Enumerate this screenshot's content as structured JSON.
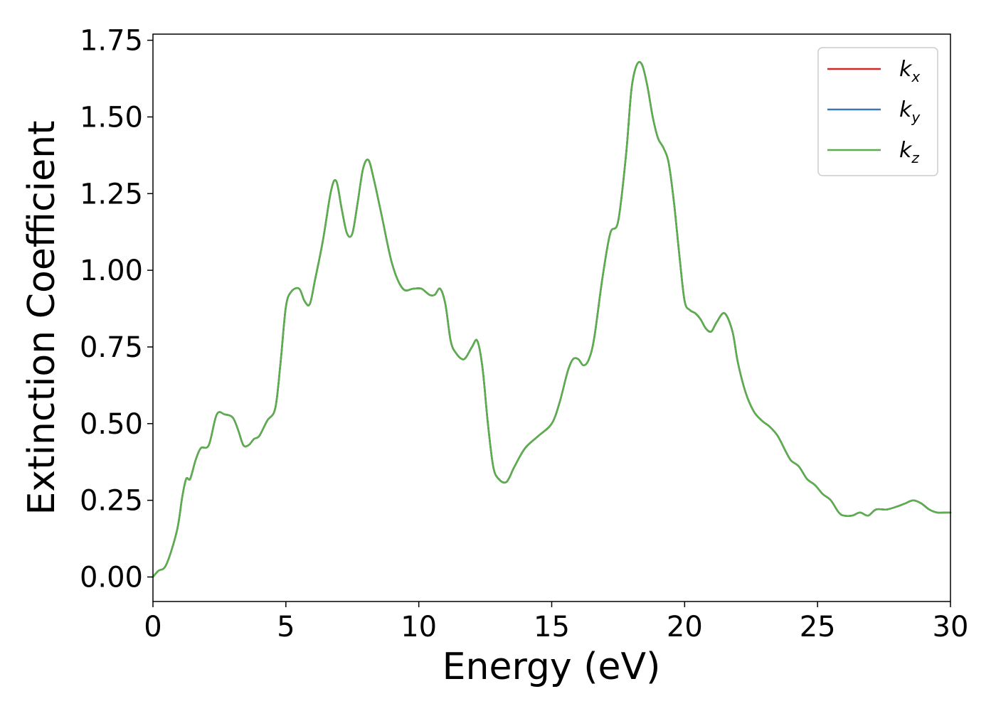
{
  "chart_data": {
    "type": "line",
    "xlabel": "Energy (eV)",
    "ylabel": "Extinction Coefficient",
    "xlim": [
      0,
      30
    ],
    "ylim": [
      -0.08,
      1.77
    ],
    "x_ticks": [
      "0",
      "5",
      "10",
      "15",
      "20",
      "25",
      "30"
    ],
    "y_ticks": [
      "0.00",
      "0.25",
      "0.50",
      "0.75",
      "1.00",
      "1.25",
      "1.50",
      "1.75"
    ],
    "grid": false,
    "legend_position": "top-right",
    "series": [
      {
        "name": "k",
        "sub": "x",
        "color": "#d62728",
        "x": [
          0,
          0.2,
          0.5,
          0.9,
          1.1,
          1.25,
          1.4,
          1.6,
          1.8,
          2.1,
          2.4,
          2.7,
          3.0,
          3.2,
          3.4,
          3.6,
          3.8,
          4.0,
          4.3,
          4.6,
          4.8,
          5.0,
          5.2,
          5.5,
          5.7,
          5.9,
          6.1,
          6.4,
          6.7,
          6.9,
          7.1,
          7.3,
          7.5,
          7.7,
          7.9,
          8.1,
          8.3,
          8.6,
          9.0,
          9.4,
          9.8,
          10.1,
          10.4,
          10.6,
          10.8,
          11.0,
          11.2,
          11.4,
          11.7,
          12.0,
          12.2,
          12.4,
          12.6,
          12.8,
          13.0,
          13.3,
          13.6,
          14.0,
          14.5,
          15.0,
          15.3,
          15.6,
          15.8,
          16.0,
          16.2,
          16.4,
          16.6,
          16.9,
          17.2,
          17.5,
          17.8,
          18.0,
          18.2,
          18.4,
          18.6,
          18.8,
          19.0,
          19.2,
          19.4,
          19.6,
          19.8,
          20.0,
          20.2,
          20.4,
          20.6,
          20.8,
          21.0,
          21.2,
          21.5,
          21.8,
          22.0,
          22.3,
          22.6,
          22.9,
          23.2,
          23.5,
          23.8,
          24.0,
          24.3,
          24.6,
          24.9,
          25.2,
          25.5,
          25.8,
          26.0,
          26.3,
          26.6,
          26.9,
          27.2,
          27.6,
          28.0,
          28.3,
          28.6,
          28.9,
          29.2,
          29.5,
          29.8,
          30.0
        ],
        "values": [
          0.0,
          0.02,
          0.04,
          0.15,
          0.26,
          0.32,
          0.32,
          0.38,
          0.42,
          0.43,
          0.53,
          0.53,
          0.52,
          0.48,
          0.43,
          0.43,
          0.45,
          0.46,
          0.51,
          0.55,
          0.7,
          0.88,
          0.93,
          0.94,
          0.9,
          0.89,
          0.97,
          1.1,
          1.26,
          1.29,
          1.2,
          1.12,
          1.12,
          1.22,
          1.33,
          1.36,
          1.3,
          1.18,
          1.02,
          0.94,
          0.94,
          0.94,
          0.92,
          0.92,
          0.94,
          0.89,
          0.77,
          0.73,
          0.71,
          0.75,
          0.77,
          0.68,
          0.5,
          0.36,
          0.32,
          0.31,
          0.36,
          0.42,
          0.46,
          0.5,
          0.57,
          0.67,
          0.71,
          0.71,
          0.69,
          0.71,
          0.78,
          0.97,
          1.12,
          1.16,
          1.38,
          1.59,
          1.67,
          1.67,
          1.6,
          1.5,
          1.43,
          1.4,
          1.35,
          1.22,
          1.05,
          0.9,
          0.87,
          0.86,
          0.84,
          0.81,
          0.8,
          0.83,
          0.86,
          0.8,
          0.7,
          0.6,
          0.54,
          0.51,
          0.49,
          0.46,
          0.41,
          0.38,
          0.36,
          0.32,
          0.3,
          0.27,
          0.25,
          0.21,
          0.2,
          0.2,
          0.21,
          0.2,
          0.22,
          0.22,
          0.23,
          0.24,
          0.25,
          0.24,
          0.22,
          0.21,
          0.21,
          0.21
        ]
      },
      {
        "name": "k",
        "sub": "y",
        "color": "#3a77b4",
        "x": [
          0,
          0.2,
          0.5,
          0.9,
          1.1,
          1.25,
          1.4,
          1.6,
          1.8,
          2.1,
          2.4,
          2.7,
          3.0,
          3.2,
          3.4,
          3.6,
          3.8,
          4.0,
          4.3,
          4.6,
          4.8,
          5.0,
          5.2,
          5.5,
          5.7,
          5.9,
          6.1,
          6.4,
          6.7,
          6.9,
          7.1,
          7.3,
          7.5,
          7.7,
          7.9,
          8.1,
          8.3,
          8.6,
          9.0,
          9.4,
          9.8,
          10.1,
          10.4,
          10.6,
          10.8,
          11.0,
          11.2,
          11.4,
          11.7,
          12.0,
          12.2,
          12.4,
          12.6,
          12.8,
          13.0,
          13.3,
          13.6,
          14.0,
          14.5,
          15.0,
          15.3,
          15.6,
          15.8,
          16.0,
          16.2,
          16.4,
          16.6,
          16.9,
          17.2,
          17.5,
          17.8,
          18.0,
          18.2,
          18.4,
          18.6,
          18.8,
          19.0,
          19.2,
          19.4,
          19.6,
          19.8,
          20.0,
          20.2,
          20.4,
          20.6,
          20.8,
          21.0,
          21.2,
          21.5,
          21.8,
          22.0,
          22.3,
          22.6,
          22.9,
          23.2,
          23.5,
          23.8,
          24.0,
          24.3,
          24.6,
          24.9,
          25.2,
          25.5,
          25.8,
          26.0,
          26.3,
          26.6,
          26.9,
          27.2,
          27.6,
          28.0,
          28.3,
          28.6,
          28.9,
          29.2,
          29.5,
          29.8,
          30.0
        ],
        "values": [
          0.0,
          0.02,
          0.04,
          0.15,
          0.26,
          0.32,
          0.32,
          0.38,
          0.42,
          0.43,
          0.53,
          0.53,
          0.52,
          0.48,
          0.43,
          0.43,
          0.45,
          0.46,
          0.51,
          0.55,
          0.7,
          0.88,
          0.93,
          0.94,
          0.9,
          0.89,
          0.97,
          1.1,
          1.26,
          1.29,
          1.2,
          1.12,
          1.12,
          1.22,
          1.33,
          1.36,
          1.3,
          1.18,
          1.02,
          0.94,
          0.94,
          0.94,
          0.92,
          0.92,
          0.94,
          0.89,
          0.77,
          0.73,
          0.71,
          0.75,
          0.77,
          0.68,
          0.5,
          0.36,
          0.32,
          0.31,
          0.36,
          0.42,
          0.46,
          0.5,
          0.57,
          0.67,
          0.71,
          0.71,
          0.69,
          0.71,
          0.78,
          0.97,
          1.12,
          1.16,
          1.38,
          1.59,
          1.67,
          1.67,
          1.6,
          1.5,
          1.43,
          1.4,
          1.35,
          1.22,
          1.05,
          0.9,
          0.87,
          0.86,
          0.84,
          0.81,
          0.8,
          0.83,
          0.86,
          0.8,
          0.7,
          0.6,
          0.54,
          0.51,
          0.49,
          0.46,
          0.41,
          0.38,
          0.36,
          0.32,
          0.3,
          0.27,
          0.25,
          0.21,
          0.2,
          0.2,
          0.21,
          0.2,
          0.22,
          0.22,
          0.23,
          0.24,
          0.25,
          0.24,
          0.22,
          0.21,
          0.21,
          0.21
        ]
      },
      {
        "name": "k",
        "sub": "z",
        "color": "#5aaf4a",
        "x": [
          0,
          0.2,
          0.5,
          0.9,
          1.1,
          1.25,
          1.4,
          1.6,
          1.8,
          2.1,
          2.4,
          2.7,
          3.0,
          3.2,
          3.4,
          3.6,
          3.8,
          4.0,
          4.3,
          4.6,
          4.8,
          5.0,
          5.2,
          5.5,
          5.7,
          5.9,
          6.1,
          6.4,
          6.7,
          6.9,
          7.1,
          7.3,
          7.5,
          7.7,
          7.9,
          8.1,
          8.3,
          8.6,
          9.0,
          9.4,
          9.8,
          10.1,
          10.4,
          10.6,
          10.8,
          11.0,
          11.2,
          11.4,
          11.7,
          12.0,
          12.2,
          12.4,
          12.6,
          12.8,
          13.0,
          13.3,
          13.6,
          14.0,
          14.5,
          15.0,
          15.3,
          15.6,
          15.8,
          16.0,
          16.2,
          16.4,
          16.6,
          16.9,
          17.2,
          17.5,
          17.8,
          18.0,
          18.2,
          18.4,
          18.6,
          18.8,
          19.0,
          19.2,
          19.4,
          19.6,
          19.8,
          20.0,
          20.2,
          20.4,
          20.6,
          20.8,
          21.0,
          21.2,
          21.5,
          21.8,
          22.0,
          22.3,
          22.6,
          22.9,
          23.2,
          23.5,
          23.8,
          24.0,
          24.3,
          24.6,
          24.9,
          25.2,
          25.5,
          25.8,
          26.0,
          26.3,
          26.6,
          26.9,
          27.2,
          27.6,
          28.0,
          28.3,
          28.6,
          28.9,
          29.2,
          29.5,
          29.8,
          30.0
        ],
        "values": [
          0.0,
          0.02,
          0.04,
          0.15,
          0.26,
          0.32,
          0.32,
          0.38,
          0.42,
          0.43,
          0.53,
          0.53,
          0.52,
          0.48,
          0.43,
          0.43,
          0.45,
          0.46,
          0.51,
          0.55,
          0.7,
          0.88,
          0.93,
          0.94,
          0.9,
          0.89,
          0.97,
          1.1,
          1.26,
          1.29,
          1.2,
          1.12,
          1.12,
          1.22,
          1.33,
          1.36,
          1.3,
          1.18,
          1.02,
          0.94,
          0.94,
          0.94,
          0.92,
          0.92,
          0.94,
          0.89,
          0.77,
          0.73,
          0.71,
          0.75,
          0.77,
          0.68,
          0.5,
          0.36,
          0.32,
          0.31,
          0.36,
          0.42,
          0.46,
          0.5,
          0.57,
          0.67,
          0.71,
          0.71,
          0.69,
          0.71,
          0.78,
          0.97,
          1.12,
          1.16,
          1.38,
          1.59,
          1.67,
          1.67,
          1.6,
          1.5,
          1.43,
          1.4,
          1.35,
          1.22,
          1.05,
          0.9,
          0.87,
          0.86,
          0.84,
          0.81,
          0.8,
          0.83,
          0.86,
          0.8,
          0.7,
          0.6,
          0.54,
          0.51,
          0.49,
          0.46,
          0.41,
          0.38,
          0.36,
          0.32,
          0.3,
          0.27,
          0.25,
          0.21,
          0.2,
          0.2,
          0.21,
          0.2,
          0.22,
          0.22,
          0.23,
          0.24,
          0.25,
          0.24,
          0.22,
          0.21,
          0.21,
          0.21
        ]
      }
    ]
  }
}
